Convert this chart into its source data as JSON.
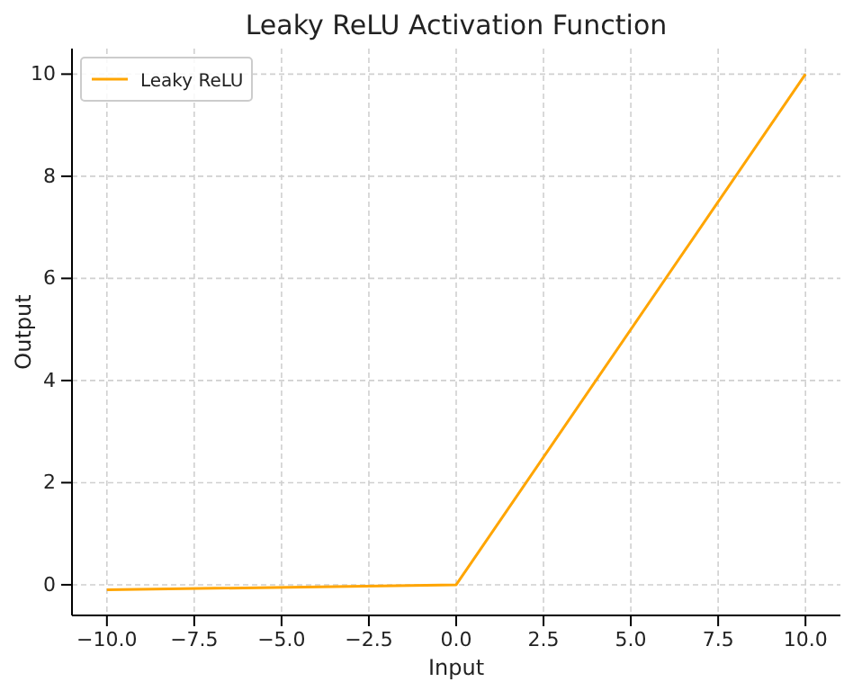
{
  "chart_data": {
    "type": "line",
    "title": "Leaky ReLU Activation Function",
    "xlabel": "Input",
    "ylabel": "Output",
    "x": [
      -10,
      0,
      10
    ],
    "series": [
      {
        "name": "Leaky ReLU",
        "color": "#ffa500",
        "values": [
          -0.1,
          0,
          10
        ]
      }
    ],
    "xlim": [
      -11,
      11
    ],
    "ylim": [
      -0.6,
      10.5
    ],
    "xticks": [
      {
        "value": -10,
        "label": "−10.0"
      },
      {
        "value": -7.5,
        "label": "−7.5"
      },
      {
        "value": -5,
        "label": "−5.0"
      },
      {
        "value": -2.5,
        "label": "−2.5"
      },
      {
        "value": 0,
        "label": "0.0"
      },
      {
        "value": 2.5,
        "label": "2.5"
      },
      {
        "value": 5,
        "label": "5.0"
      },
      {
        "value": 7.5,
        "label": "7.5"
      },
      {
        "value": 10,
        "label": "10.0"
      }
    ],
    "yticks": [
      0,
      2,
      4,
      6,
      8,
      10
    ],
    "grid": true,
    "legend": "top left",
    "marker": "none",
    "line_style": "solid"
  }
}
